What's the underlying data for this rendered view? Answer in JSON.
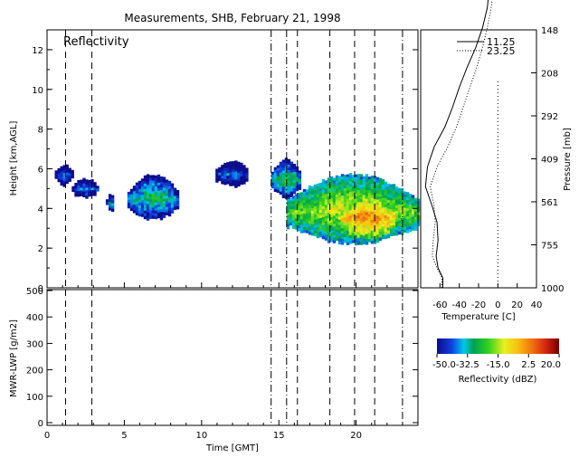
{
  "title": "Measurements, SHB, February 21, 1998",
  "chart_data": [
    {
      "type": "heatmap",
      "panel_label": "Reflectivity",
      "ylabel": "Height [km,AGL]",
      "xlim": [
        0,
        24
      ],
      "ylim": [
        0,
        13
      ],
      "y_ticks": [
        0,
        2,
        4,
        6,
        8,
        10,
        12
      ],
      "event_lines": [
        {
          "x": 1.2,
          "style": "dashed"
        },
        {
          "x": 2.9,
          "style": "dashed"
        },
        {
          "x": 14.5,
          "style": "dashdot"
        },
        {
          "x": 15.5,
          "style": "dashdot"
        },
        {
          "x": 16.2,
          "style": "dashed"
        },
        {
          "x": 18.3,
          "style": "dashed"
        },
        {
          "x": 19.9,
          "style": "dashed"
        },
        {
          "x": 21.2,
          "style": "dashed"
        },
        {
          "x": 23.0,
          "style": "dashdot"
        }
      ],
      "echo_regions": [
        {
          "x_start": 0.5,
          "x_end": 1.6,
          "y_bottom": 5.2,
          "y_top": 6.3,
          "dbz": -40
        },
        {
          "x_start": 1.6,
          "x_end": 3.2,
          "y_bottom": 4.5,
          "y_top": 5.6,
          "dbz": -38
        },
        {
          "x_start": 3.8,
          "x_end": 4.3,
          "y_bottom": 3.9,
          "y_top": 4.8,
          "dbz": -35
        },
        {
          "x_start": 5.2,
          "x_end": 8.4,
          "y_bottom": 3.4,
          "y_top": 5.8,
          "dbz": -30
        },
        {
          "x_start": 10.9,
          "x_end": 13.0,
          "y_bottom": 5.1,
          "y_top": 6.5,
          "dbz": -40
        },
        {
          "x_start": 14.5,
          "x_end": 16.3,
          "y_bottom": 4.5,
          "y_top": 6.6,
          "dbz": -28
        },
        {
          "x_start": 15.5,
          "x_end": 24.0,
          "y_bottom": 2.2,
          "y_top": 5.8,
          "dbz": -15
        },
        {
          "x_start": 19.0,
          "x_end": 22.5,
          "y_bottom": 2.5,
          "y_top": 4.8,
          "dbz": 0
        }
      ]
    },
    {
      "type": "line",
      "ylabel": "MWR-LWP [g/m2]",
      "xlabel": "Time [GMT]",
      "xlim": [
        0,
        24
      ],
      "ylim": [
        0,
        500
      ],
      "x_ticks": [
        0,
        5,
        10,
        15,
        20
      ],
      "y_ticks": [
        0,
        100,
        200,
        300,
        400,
        500
      ],
      "series": []
    },
    {
      "type": "line",
      "xlabel": "Temperature [C]",
      "ylabel": "Pressure [mb]",
      "xlim": [
        -80,
        40
      ],
      "x_ticks": [
        -60,
        -40,
        -20,
        0,
        20,
        40
      ],
      "y_tick_labels": [
        "148",
        "208",
        "292",
        "409",
        "561",
        "755",
        "1000"
      ],
      "series": [
        {
          "name": "11.25",
          "style": "solid",
          "points": [
            [
              -57,
              0
            ],
            [
              -57,
              0.5
            ],
            [
              -62,
              1.0
            ],
            [
              -64,
              1.6
            ],
            [
              -62,
              2.4
            ],
            [
              -63,
              3.3
            ],
            [
              -68,
              4.1
            ],
            [
              -75,
              5.1
            ],
            [
              -73,
              6.1
            ],
            [
              -66,
              7.1
            ],
            [
              -55,
              8.1
            ],
            [
              -47,
              9.1
            ],
            [
              -40,
              10.1
            ],
            [
              -32,
              11.1
            ],
            [
              -23,
              12.1
            ],
            [
              -16,
              13.1
            ],
            [
              -11,
              14.1
            ],
            [
              -9,
              15.0
            ],
            [
              -8,
              15.5
            ]
          ]
        },
        {
          "name": "23.25",
          "style": "dotted",
          "points": [
            [
              -58,
              0
            ],
            [
              -58,
              0.5
            ],
            [
              -63,
              1.0
            ],
            [
              -68,
              1.6
            ],
            [
              -67,
              2.4
            ],
            [
              -65,
              3.3
            ],
            [
              -66,
              4.1
            ],
            [
              -70,
              5.1
            ],
            [
              -63,
              6.1
            ],
            [
              -52,
              7.1
            ],
            [
              -43,
              8.1
            ],
            [
              -36,
              9.1
            ],
            [
              -29,
              10.1
            ],
            [
              -22,
              11.1
            ],
            [
              -16,
              12.1
            ],
            [
              -11,
              13.1
            ],
            [
              -7,
              14.1
            ],
            [
              -5,
              15.0
            ],
            [
              -4,
              15.5
            ]
          ]
        }
      ],
      "reference_line": {
        "x": 0,
        "style": "dotted"
      }
    },
    {
      "type": "colorbar",
      "label": "Reflectivity (dBZ)",
      "range": [
        -50,
        20
      ],
      "tick_labels": [
        "-50.0",
        "-32.5",
        "-15.0",
        "2.5",
        "20.0"
      ],
      "tick_values": [
        -50,
        -32.5,
        -15,
        2.5,
        20
      ]
    }
  ]
}
